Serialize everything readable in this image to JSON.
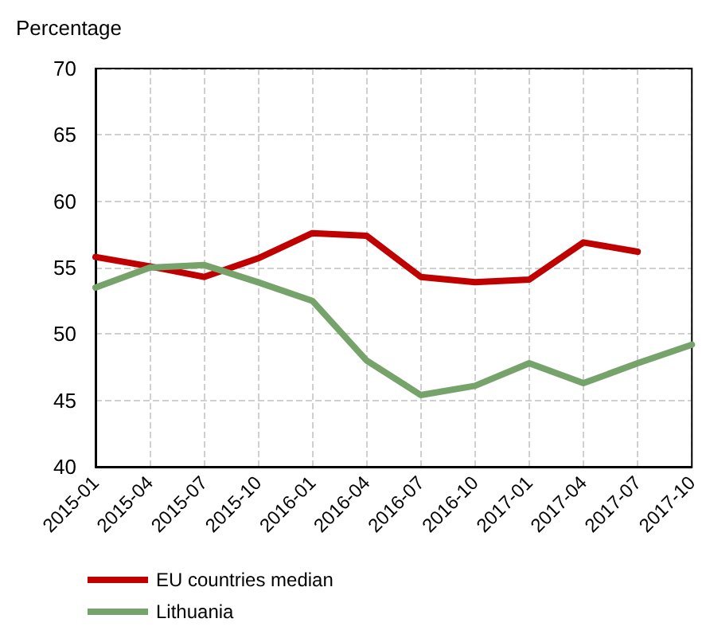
{
  "chart_data": {
    "type": "line",
    "ylabel": "Percentage",
    "categories": [
      "2015-01",
      "2015-04",
      "2015-07",
      "2015-10",
      "2016-01",
      "2016-04",
      "2016-07",
      "2016-10",
      "2017-01",
      "2017-04",
      "2017-07",
      "2017-10"
    ],
    "series": [
      {
        "name": "EU countries median",
        "color": "#c00000",
        "values": [
          55.8,
          55.1,
          54.3,
          55.7,
          57.6,
          57.4,
          54.3,
          53.9,
          54.1,
          56.9,
          56.2,
          null
        ]
      },
      {
        "name": "Lithuania",
        "color": "#76a36a",
        "values": [
          53.5,
          55.0,
          55.2,
          53.9,
          52.5,
          48.0,
          45.4,
          46.1,
          47.8,
          46.3,
          47.8,
          49.2
        ]
      }
    ],
    "ylim": [
      40,
      70
    ],
    "yticks": [
      40,
      45,
      50,
      55,
      60,
      65,
      70
    ],
    "grid": true,
    "legend": "bottom",
    "marker": "none",
    "line_style": "solid"
  }
}
